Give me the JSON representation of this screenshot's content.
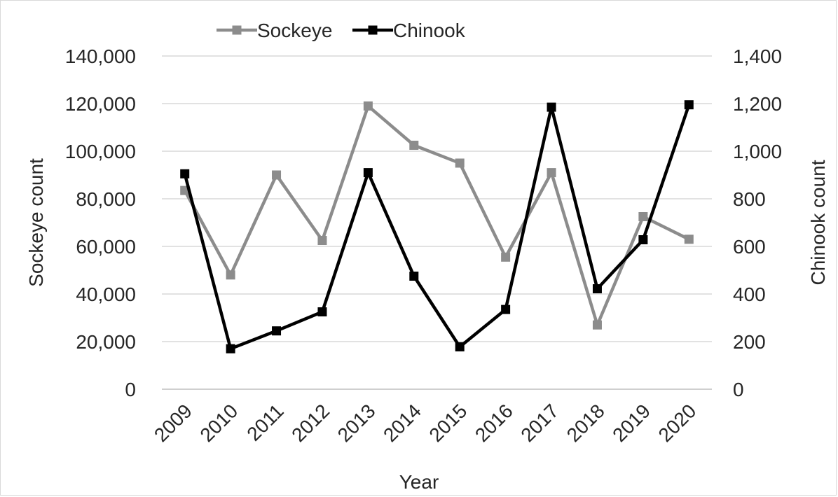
{
  "chart_data": {
    "type": "line",
    "x": [
      "2009",
      "2010",
      "2011",
      "2012",
      "2013",
      "2014",
      "2015",
      "2016",
      "2017",
      "2018",
      "2019",
      "2020"
    ],
    "xlabel": "Year",
    "series": [
      {
        "name": "Sockeye",
        "axis": "left",
        "color": "#8c8c8c",
        "values": [
          83500,
          48000,
          90000,
          62500,
          119000,
          102500,
          95000,
          55500,
          91000,
          27000,
          72500,
          63000
        ]
      },
      {
        "name": "Chinook",
        "axis": "right",
        "color": "#000000",
        "values": [
          905,
          170,
          245,
          325,
          910,
          475,
          178,
          335,
          1185,
          422,
          628,
          1195
        ]
      }
    ],
    "y_left": {
      "label": "Sockeye count",
      "lim": [
        0,
        140000
      ],
      "ticks": [
        "0",
        "20,000",
        "40,000",
        "60,000",
        "80,000",
        "100,000",
        "120,000",
        "140,000"
      ]
    },
    "y_right": {
      "label": "Chinook count",
      "lim": [
        0,
        1400
      ],
      "ticks": [
        "0",
        "200",
        "400",
        "600",
        "800",
        "1,000",
        "1,200",
        "1,400"
      ]
    },
    "grid": true,
    "legend": "top-center"
  }
}
